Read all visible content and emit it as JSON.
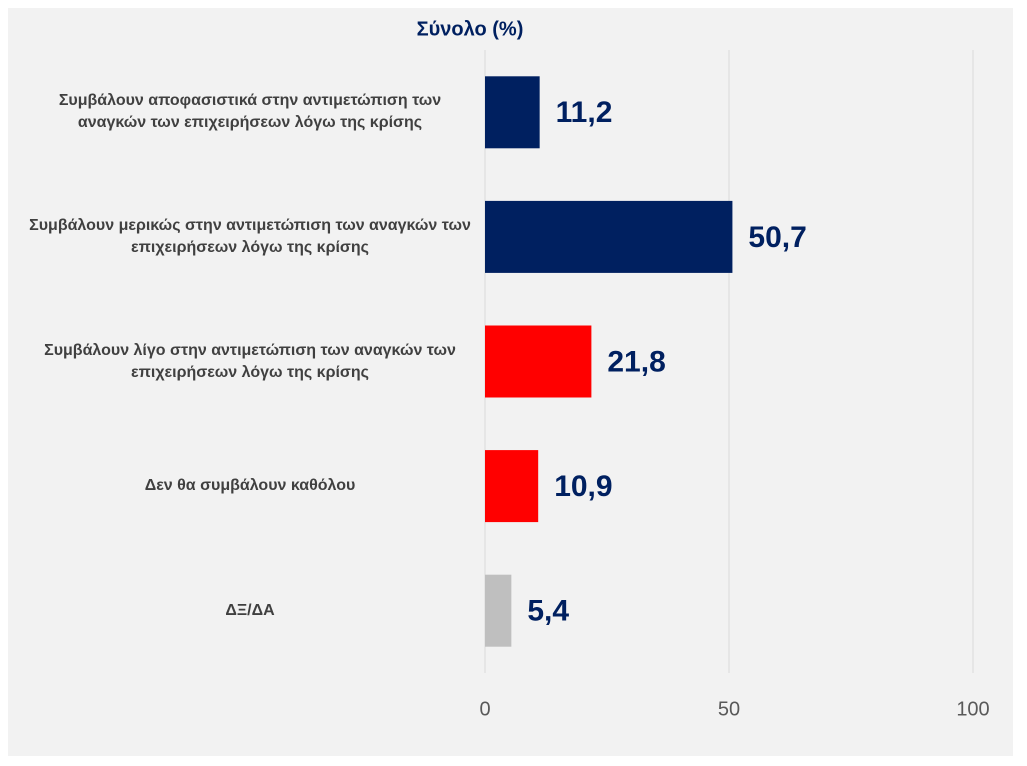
{
  "chart_data": {
    "type": "bar",
    "orientation": "horizontal",
    "title": "Σύνολο (%)",
    "categories": [
      "Συμβάλουν αποφασιστικά στην αντιμετώπιση των αναγκών των επιχειρήσεων λόγω της κρίσης",
      "Συμβάλουν μερικώς στην αντιμετώπιση των αναγκών των επιχειρήσεων λόγω της κρίσης",
      "Συμβάλουν λίγο στην αντιμετώπιση των αναγκών των επιχειρήσεων λόγω της κρίσης",
      "Δεν θα συμβάλουν καθόλου",
      "ΔΞ/ΔΑ"
    ],
    "values": [
      11.2,
      50.7,
      21.8,
      10.9,
      5.4
    ],
    "value_labels": [
      "11,2",
      "50,7",
      "21,8",
      "10,9",
      "5,4"
    ],
    "colors": [
      "#002060",
      "#002060",
      "#ff0000",
      "#ff0000",
      "#bfbfbf"
    ],
    "xlim": [
      0,
      100
    ],
    "xticks": [
      0,
      50,
      100
    ],
    "grid": true
  }
}
